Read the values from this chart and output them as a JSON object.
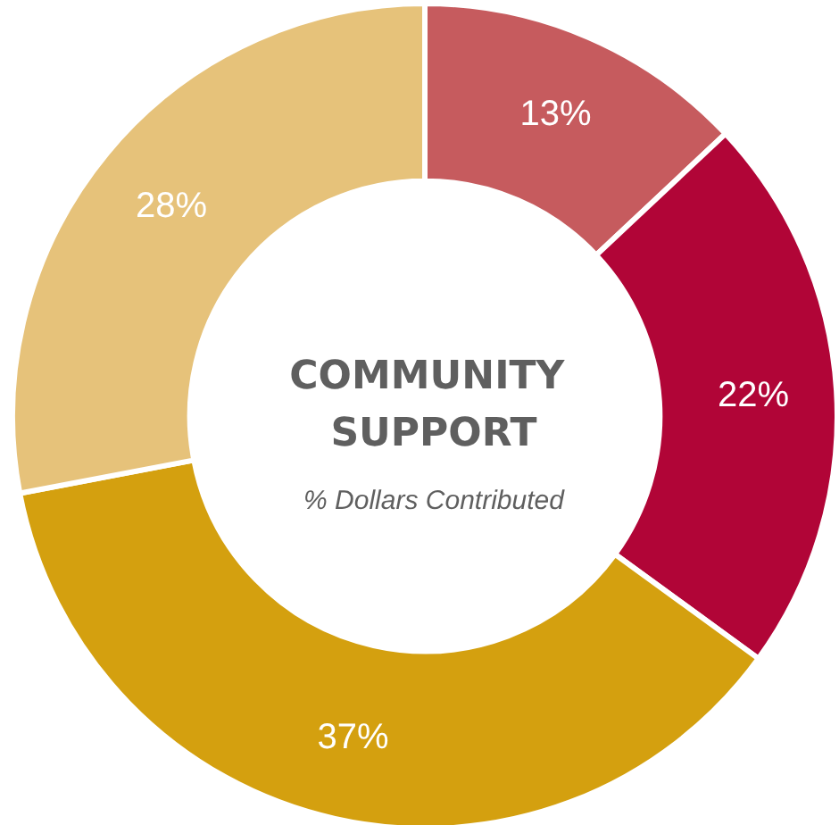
{
  "chart_data": {
    "type": "donut",
    "title": "COMMUNITY SUPPORT",
    "subtitle": "% Dollars Contributed",
    "categories": [
      null,
      null,
      null,
      null
    ],
    "values": [
      13,
      22,
      37,
      28
    ],
    "value_labels": [
      "13%",
      "22%",
      "37%",
      "28%"
    ],
    "colors": [
      "#c65b5e",
      "#b10537",
      "#d4a00f",
      "#e6c27a"
    ]
  }
}
